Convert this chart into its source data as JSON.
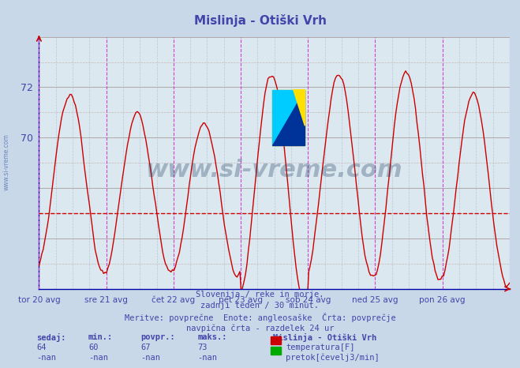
{
  "title": "Mislinja - Otiški Vrh",
  "title_color": "#4444aa",
  "bg_color": "#c8d8e8",
  "plot_bg_color": "#dce8f0",
  "line_color": "#cc0000",
  "line_width": 1.0,
  "avg_value": 67.0,
  "y_min": 64,
  "y_max": 74,
  "y_ticks": [
    70,
    72
  ],
  "x_labels": [
    "tor 20 avg",
    "sre 21 avg",
    "čet 22 avg",
    "pet 23 avg",
    "sob 24 avg",
    "ned 25 avg",
    "pon 26 avg"
  ],
  "watermark_text": "www.si-vreme.com",
  "watermark_color": "#1a3a5c",
  "watermark_alpha": 0.3,
  "footnote_line1": "Slovenija / reke in morje.",
  "footnote_line2": "zadnji teden / 30 minut.",
  "footnote_line3": "Meritve: povprečne  Enote: angleosaške  Črta: povprečje",
  "footnote_line4": "navpična črta - razdelek 24 ur",
  "footnote_color": "#4444aa",
  "table_headers": [
    "sedaj:",
    "min.:",
    "povpr.:",
    "maks.:"
  ],
  "table_row1": [
    "64",
    "60",
    "67",
    "73"
  ],
  "table_row2": [
    "-nan",
    "-nan",
    "-nan",
    "-nan"
  ],
  "legend_title": "Mislinja - Otiški Vrh",
  "legend_color1": "#cc0000",
  "legend_label1": "temperatura[F]",
  "legend_color2": "#00aa00",
  "legend_label2": "pretok[čevelj3/min]",
  "num_points": 336,
  "period_days": 7
}
